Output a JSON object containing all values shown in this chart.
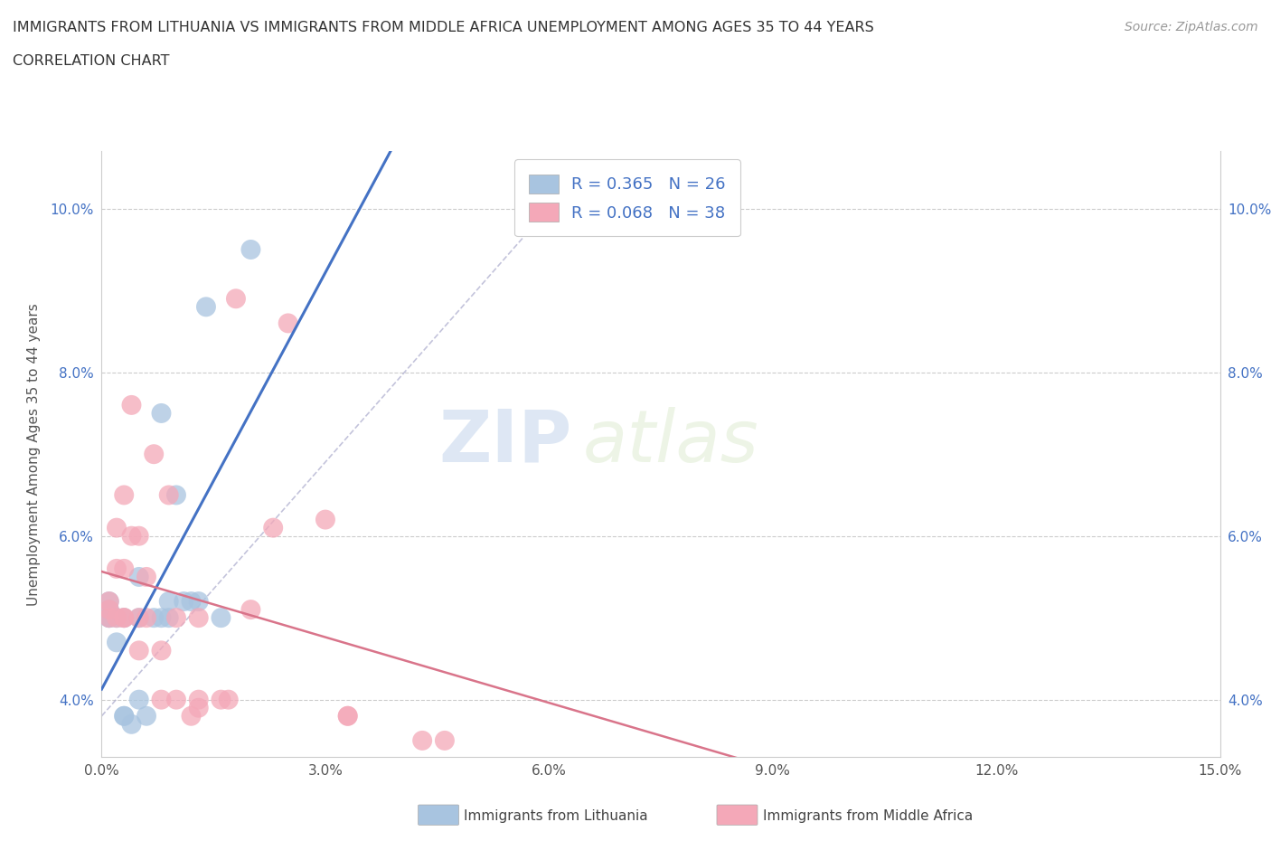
{
  "title_line1": "IMMIGRANTS FROM LITHUANIA VS IMMIGRANTS FROM MIDDLE AFRICA UNEMPLOYMENT AMONG AGES 35 TO 44 YEARS",
  "title_line2": "CORRELATION CHART",
  "source_text": "Source: ZipAtlas.com",
  "ylabel": "Unemployment Among Ages 35 to 44 years",
  "xlim": [
    0.0,
    0.15
  ],
  "ylim": [
    0.033,
    0.107
  ],
  "xticks": [
    0.0,
    0.03,
    0.06,
    0.09,
    0.12,
    0.15
  ],
  "xticklabels": [
    "0.0%",
    "3.0%",
    "6.0%",
    "9.0%",
    "12.0%",
    "15.0%"
  ],
  "yticks": [
    0.04,
    0.06,
    0.08,
    0.1
  ],
  "yticklabels": [
    "4.0%",
    "6.0%",
    "8.0%",
    "10.0%"
  ],
  "legend_r1": "R = 0.365",
  "legend_n1": "N = 26",
  "legend_r2": "R = 0.068",
  "legend_n2": "N = 38",
  "color_lithuania": "#a8c4e0",
  "color_middle_africa": "#f4a8b8",
  "line_color_lithuania": "#4472c4",
  "line_color_middle_africa": "#d9748a",
  "watermark_zip": "ZIP",
  "watermark_atlas": "atlas",
  "lithuania_x": [
    0.001,
    0.001,
    0.001,
    0.001,
    0.002,
    0.002,
    0.003,
    0.003,
    0.003,
    0.004,
    0.005,
    0.005,
    0.005,
    0.006,
    0.007,
    0.008,
    0.008,
    0.009,
    0.009,
    0.01,
    0.011,
    0.012,
    0.013,
    0.014,
    0.016,
    0.02
  ],
  "lithuania_y": [
    0.05,
    0.05,
    0.051,
    0.052,
    0.047,
    0.05,
    0.05,
    0.038,
    0.038,
    0.037,
    0.04,
    0.05,
    0.055,
    0.038,
    0.05,
    0.05,
    0.075,
    0.05,
    0.052,
    0.065,
    0.052,
    0.052,
    0.052,
    0.088,
    0.05,
    0.095
  ],
  "middle_africa_x": [
    0.001,
    0.001,
    0.001,
    0.002,
    0.002,
    0.002,
    0.003,
    0.003,
    0.003,
    0.003,
    0.004,
    0.004,
    0.005,
    0.005,
    0.005,
    0.006,
    0.006,
    0.007,
    0.008,
    0.008,
    0.009,
    0.01,
    0.01,
    0.012,
    0.013,
    0.013,
    0.013,
    0.016,
    0.017,
    0.018,
    0.02,
    0.023,
    0.025,
    0.03,
    0.033,
    0.033,
    0.043,
    0.046
  ],
  "middle_africa_y": [
    0.05,
    0.051,
    0.052,
    0.05,
    0.056,
    0.061,
    0.065,
    0.05,
    0.05,
    0.056,
    0.06,
    0.076,
    0.046,
    0.05,
    0.06,
    0.05,
    0.055,
    0.07,
    0.04,
    0.046,
    0.065,
    0.04,
    0.05,
    0.038,
    0.039,
    0.04,
    0.05,
    0.04,
    0.04,
    0.089,
    0.051,
    0.061,
    0.086,
    0.062,
    0.038,
    0.038,
    0.035,
    0.035
  ]
}
